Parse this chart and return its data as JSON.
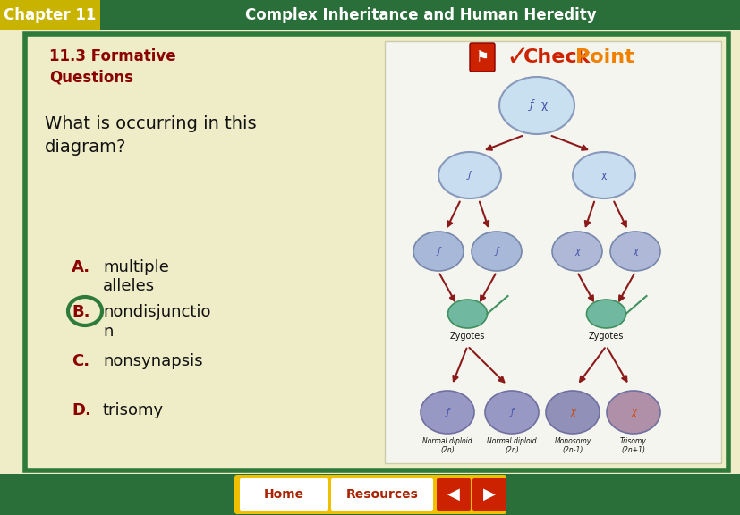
{
  "header_bg": "#2a6e3a",
  "header_text_color": "#ffffff",
  "chapter_label": "Chapter 11",
  "chapter_label_bg": "#c8b400",
  "chapter_title": "Complex Inheritance and Human Heredity",
  "body_bg": "#eeedc8",
  "border_color": "#2d7a3a",
  "section_title": "11.3 Formative\nQuestions",
  "section_title_color": "#8b0000",
  "question_text": "What is occurring in this\ndiagram?",
  "question_color": "#111111",
  "answers": [
    {
      "letter": "A.",
      "text": "multiple\nalleles",
      "letter_color": "#8b0000",
      "text_color": "#111111"
    },
    {
      "letter": "B.",
      "text": "nondisjunctio\nn",
      "letter_color": "#8b0000",
      "text_color": "#111111"
    },
    {
      "letter": "C.",
      "text": "nonsynapsis",
      "letter_color": "#8b0000",
      "text_color": "#111111"
    },
    {
      "letter": "D.",
      "text": "trisomy",
      "letter_color": "#8b0000",
      "text_color": "#111111"
    }
  ],
  "circle_color": "#2d7a3a",
  "footer_bg": "#2a6e3a",
  "footer_btn_bg": "#f0c000",
  "footer_btn_text_color": "#aa2200",
  "footer_arrow_bg": "#cc2200",
  "right_panel_bg": "#f5f5f0",
  "right_panel_border": "#ccccaa",
  "diagram_bg": "#f0f0e8",
  "cell_color_top": "#b8d8e8",
  "cell_color_mid": "#b8cce0",
  "cell_color_low": "#a8b8d8",
  "cell_color_final_l": "#9898c0",
  "cell_color_final_r": "#b898b0",
  "arrow_color": "#8b1a1a"
}
